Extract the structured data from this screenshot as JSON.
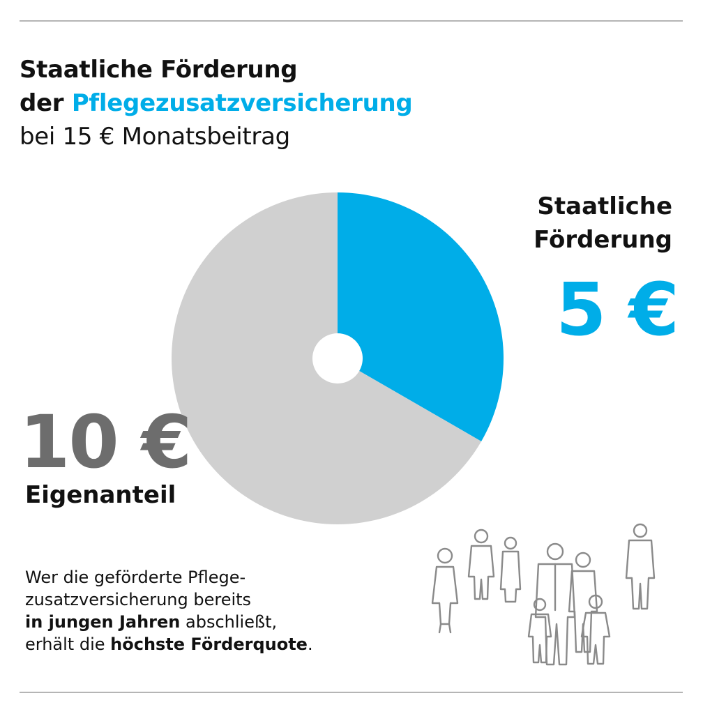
{
  "header": {
    "title_line1": "Staatliche Förderung",
    "title_line2_prefix": "der",
    "title_line2_accent": "Pflegezusatzversicherung",
    "title_line3": "bei 15 € Monatsbeitrag"
  },
  "colors": {
    "accent": "#00ade8",
    "share_gray": "#d0d0d0",
    "value_gray": "#6d6d6d"
  },
  "chart_data": {
    "type": "pie",
    "title": "Staatliche Förderung der Pflegezusatzversicherung bei 15 € Monatsbeitrag",
    "unit": "€",
    "total": 15,
    "slices": [
      {
        "name": "Staatliche Förderung",
        "value": 5,
        "label": "5 €",
        "color": "#00ade8"
      },
      {
        "name": "Eigenanteil",
        "value": 10,
        "label": "10 €",
        "color": "#d0d0d0"
      }
    ]
  },
  "labels": {
    "right_label_line1": "Staatliche",
    "right_label_line2": "Förderung",
    "right_value": "5 €",
    "left_value": "10 €",
    "left_label": "Eigenanteil"
  },
  "note": {
    "line1": "Wer die geförderte Pflege-",
    "line2": "zusatzversicherung bereits",
    "line3_bold": "in jungen Jahren",
    "line3_rest": " abschließt,",
    "line4_start": "erhält die ",
    "line4_bold": "höchste Förderquote",
    "line4_end": "."
  },
  "illustration": {
    "icon": "family-people-icon"
  }
}
